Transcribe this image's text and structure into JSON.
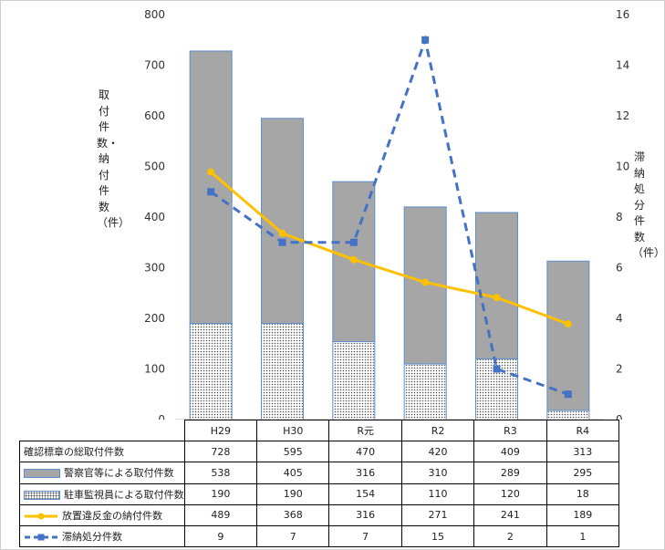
{
  "chart_data": {
    "type": "bar",
    "title": "",
    "categories": [
      "H29",
      "H30",
      "R元",
      "R2",
      "R3",
      "R4"
    ],
    "left_axis": {
      "label": "取付件数・納付件数（件）",
      "ylim": [
        0,
        800
      ],
      "ticks": [
        0,
        100,
        200,
        300,
        400,
        500,
        600,
        700,
        800
      ]
    },
    "right_axis": {
      "label": "滞納処分件数（件）",
      "ylim": [
        0,
        16
      ],
      "ticks": [
        0,
        2,
        4,
        6,
        8,
        10,
        12,
        14,
        16
      ]
    },
    "series": [
      {
        "name": "確認標章の総取付件数",
        "kind": "total",
        "values": [
          728,
          595,
          470,
          420,
          409,
          313
        ]
      },
      {
        "name": "警察官等による取付件数",
        "kind": "stacked-bar",
        "color": "#a6a6a6",
        "values": [
          538,
          405,
          316,
          310,
          289,
          295
        ]
      },
      {
        "name": "駐車監視員による取付件数",
        "kind": "stacked-bar",
        "color": "#ffffff",
        "values": [
          190,
          190,
          154,
          110,
          120,
          18
        ]
      },
      {
        "name": "放置違反金の納付件数",
        "kind": "line",
        "axis": "left",
        "color": "#ffc000",
        "values": [
          489,
          368,
          316,
          271,
          241,
          189
        ]
      },
      {
        "name": "滞納処分件数",
        "kind": "line-dashed",
        "axis": "right",
        "color": "#4472c4",
        "values": [
          9,
          7,
          7,
          15,
          2,
          1
        ]
      }
    ],
    "legend": "data-table-below",
    "grid": false
  },
  "colors": {
    "bar_border": "#5b8fd2",
    "bar_gray": "#a6a6a6",
    "line_orange": "#ffc000",
    "line_blue": "#4472c4"
  }
}
